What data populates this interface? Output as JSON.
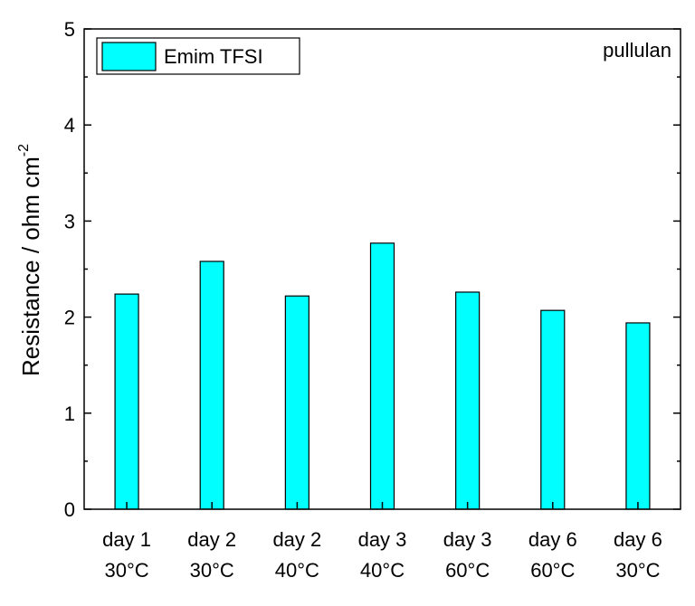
{
  "chart_data": {
    "type": "bar",
    "categories": [
      [
        "day 1",
        "30°C"
      ],
      [
        "day 2",
        "30°C"
      ],
      [
        "day 2",
        "40°C"
      ],
      [
        "day 3",
        "40°C"
      ],
      [
        "day 3",
        "60°C"
      ],
      [
        "day 6",
        "60°C"
      ],
      [
        "day 6",
        "30°C"
      ]
    ],
    "series": [
      {
        "name": "Emim TFSI",
        "values": [
          2.24,
          2.58,
          2.22,
          2.77,
          2.26,
          2.07,
          1.94
        ],
        "color": "#00FFFF"
      }
    ],
    "ylabel": "Resistance /  ohm cm",
    "ylabel_superscript": "-2",
    "xlabel": "",
    "ylim": [
      0,
      5
    ],
    "yticks": [
      "0",
      "1",
      "2",
      "3",
      "4",
      "5"
    ],
    "annotation": "pullulan",
    "legend_position": "top-left",
    "grid": false,
    "bar_edge_color": "#000000"
  }
}
